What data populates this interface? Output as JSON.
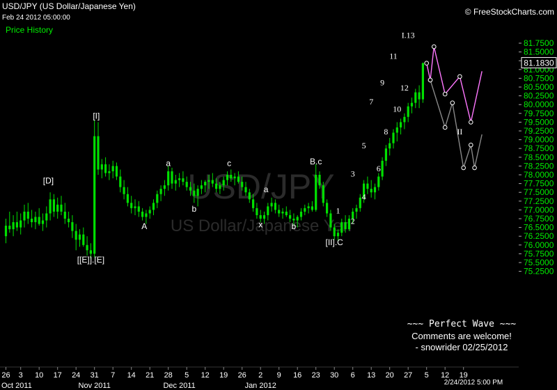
{
  "header": {
    "title": "USD/JPY (US Dollar/Japanese Yen)",
    "datetime": "Feb 24 2012 05:00:00",
    "price_history_label": "Price History",
    "copyright": "© FreeStockCharts.com"
  },
  "watermark": {
    "symbol": "USD/JPY",
    "name": "US Dollar/Japanese Yen"
  },
  "last_price": "81.1830",
  "last_bar_time": "2/24/2012 5:00 PM",
  "comment": {
    "line1": "~~~ Perfect Wave ~~~",
    "line2": "Comments are welcome!",
    "line3": "- snowrider  02/25/2012"
  },
  "colors": {
    "background": "#000000",
    "candle": "#00e000",
    "axis_label": "#00ee00",
    "projection_primary": "#ff77ff",
    "projection_alt": "#888888"
  },
  "chart_data": {
    "type": "line",
    "title": "USD/JPY (US Dollar/Japanese Yen)",
    "y_axis": {
      "position": "right",
      "ylim": [
        75.05,
        82.0
      ],
      "ticks": [
        "81.7500",
        "81.5000",
        "81.2500",
        "81.0000",
        "80.7500",
        "80.5000",
        "80.2500",
        "80.0000",
        "79.7500",
        "79.5000",
        "79.2500",
        "79.0000",
        "78.7500",
        "78.5000",
        "78.2500",
        "78.0000",
        "77.7500",
        "77.5000",
        "77.2500",
        "77.0000",
        "76.7500",
        "76.5000",
        "76.2500",
        "76.0000",
        "75.7500",
        "75.5000",
        "75.2500"
      ]
    },
    "x_axis": {
      "day_ticks": [
        {
          "i": 0,
          "label": "26"
        },
        {
          "i": 4,
          "label": "3"
        },
        {
          "i": 9,
          "label": "10"
        },
        {
          "i": 14,
          "label": "17"
        },
        {
          "i": 19,
          "label": "24"
        },
        {
          "i": 24,
          "label": "31"
        },
        {
          "i": 29,
          "label": "7"
        },
        {
          "i": 34,
          "label": "14"
        },
        {
          "i": 39,
          "label": "21"
        },
        {
          "i": 44,
          "label": "28"
        },
        {
          "i": 49,
          "label": "5"
        },
        {
          "i": 54,
          "label": "12"
        },
        {
          "i": 59,
          "label": "19"
        },
        {
          "i": 64,
          "label": "26"
        },
        {
          "i": 69,
          "label": "2"
        },
        {
          "i": 74,
          "label": "9"
        },
        {
          "i": 79,
          "label": "16"
        },
        {
          "i": 84,
          "label": "23"
        },
        {
          "i": 89,
          "label": "30"
        },
        {
          "i": 94,
          "label": "6"
        },
        {
          "i": 99,
          "label": "13"
        },
        {
          "i": 104,
          "label": "20"
        },
        {
          "i": 109,
          "label": "27"
        },
        {
          "i": 114,
          "label": "5"
        },
        {
          "i": 119,
          "label": "12"
        },
        {
          "i": 124,
          "label": "19"
        }
      ],
      "month_labels": [
        {
          "i": 0,
          "label": "Oct 2011"
        },
        {
          "i": 24,
          "label": "Nov 2011"
        },
        {
          "i": 47,
          "label": "Dec 2011"
        },
        {
          "i": 69,
          "label": "Jan 2012"
        }
      ]
    },
    "series": [
      {
        "kind": "candlestick",
        "ohlc": [
          [
            76.25,
            76.75,
            76.05,
            76.55
          ],
          [
            76.55,
            76.95,
            76.35,
            76.45
          ],
          [
            76.45,
            76.85,
            76.25,
            76.65
          ],
          [
            76.65,
            76.95,
            76.4,
            76.5
          ],
          [
            76.5,
            76.9,
            76.3,
            76.7
          ],
          [
            76.7,
            77.15,
            76.5,
            76.95
          ],
          [
            76.95,
            77.2,
            76.6,
            76.75
          ],
          [
            76.75,
            77.0,
            76.5,
            76.65
          ],
          [
            76.65,
            76.95,
            76.45,
            76.8
          ],
          [
            76.8,
            77.05,
            76.55,
            76.6
          ],
          [
            76.6,
            76.9,
            76.4,
            76.7
          ],
          [
            76.7,
            77.1,
            76.5,
            76.9
          ],
          [
            76.9,
            77.5,
            76.7,
            77.3
          ],
          [
            77.3,
            77.45,
            76.8,
            76.95
          ],
          [
            76.95,
            77.35,
            76.75,
            77.15
          ],
          [
            77.15,
            77.4,
            76.85,
            76.95
          ],
          [
            76.95,
            77.2,
            76.6,
            76.75
          ],
          [
            76.75,
            76.95,
            76.5,
            76.65
          ],
          [
            76.65,
            76.85,
            76.2,
            76.4
          ],
          [
            76.4,
            76.6,
            75.85,
            76.15
          ],
          [
            76.15,
            76.45,
            75.95,
            76.3
          ],
          [
            76.3,
            76.5,
            75.95,
            76.0
          ],
          [
            76.0,
            76.25,
            75.7,
            75.85
          ],
          [
            75.85,
            76.05,
            75.6,
            75.75
          ],
          [
            75.75,
            79.55,
            75.65,
            79.1
          ],
          [
            79.1,
            79.5,
            78.0,
            78.15
          ],
          [
            78.15,
            78.45,
            77.9,
            78.3
          ],
          [
            78.3,
            78.5,
            77.95,
            78.05
          ],
          [
            78.05,
            78.3,
            77.85,
            78.1
          ],
          [
            78.1,
            78.4,
            77.9,
            78.25
          ],
          [
            78.25,
            78.35,
            77.85,
            77.95
          ],
          [
            77.95,
            78.15,
            77.5,
            77.65
          ],
          [
            77.65,
            77.85,
            77.3,
            77.45
          ],
          [
            77.45,
            77.65,
            77.1,
            77.2
          ],
          [
            77.2,
            77.4,
            76.9,
            77.05
          ],
          [
            77.05,
            77.3,
            76.85,
            77.1
          ],
          [
            77.1,
            77.25,
            76.8,
            76.95
          ],
          [
            76.95,
            77.05,
            76.7,
            76.8
          ],
          [
            76.8,
            77.0,
            76.6,
            76.9
          ],
          [
            76.9,
            77.1,
            76.75,
            77.0
          ],
          [
            77.0,
            77.3,
            76.85,
            77.2
          ],
          [
            77.2,
            77.55,
            77.05,
            77.45
          ],
          [
            77.45,
            77.7,
            77.25,
            77.6
          ],
          [
            77.6,
            77.85,
            77.4,
            77.7
          ],
          [
            77.7,
            78.25,
            77.55,
            78.1
          ],
          [
            78.1,
            78.2,
            77.6,
            77.75
          ],
          [
            77.75,
            78.0,
            77.55,
            77.85
          ],
          [
            77.85,
            78.05,
            77.65,
            77.9
          ],
          [
            77.9,
            78.1,
            77.7,
            77.8
          ],
          [
            77.8,
            77.95,
            77.55,
            77.65
          ],
          [
            77.65,
            77.8,
            77.4,
            77.55
          ],
          [
            77.55,
            77.75,
            77.2,
            77.4
          ],
          [
            77.4,
            77.7,
            77.1,
            77.6
          ],
          [
            77.6,
            77.85,
            77.45,
            77.7
          ],
          [
            77.7,
            77.85,
            77.5,
            77.8
          ],
          [
            77.8,
            78.0,
            77.6,
            77.85
          ],
          [
            77.85,
            78.05,
            77.65,
            77.75
          ],
          [
            77.75,
            77.9,
            77.5,
            77.6
          ],
          [
            77.6,
            77.8,
            77.45,
            77.7
          ],
          [
            77.7,
            77.95,
            77.55,
            77.85
          ],
          [
            77.85,
            78.1,
            77.7,
            78.0
          ],
          [
            78.0,
            78.15,
            77.8,
            77.9
          ],
          [
            77.9,
            78.05,
            77.7,
            77.95
          ],
          [
            77.95,
            78.1,
            77.75,
            77.8
          ],
          [
            77.8,
            77.95,
            77.55,
            77.65
          ],
          [
            77.65,
            77.8,
            77.4,
            77.5
          ],
          [
            77.5,
            77.6,
            77.2,
            77.3
          ],
          [
            77.3,
            77.45,
            76.95,
            77.05
          ],
          [
            77.05,
            77.2,
            76.75,
            76.85
          ],
          [
            76.85,
            77.0,
            76.65,
            76.75
          ],
          [
            76.75,
            76.95,
            76.6,
            76.85
          ],
          [
            76.85,
            77.2,
            76.7,
            77.1
          ],
          [
            77.1,
            77.35,
            76.95,
            77.2
          ],
          [
            77.2,
            77.3,
            76.9,
            77.0
          ],
          [
            77.0,
            77.15,
            76.8,
            76.9
          ],
          [
            76.9,
            77.05,
            76.75,
            76.95
          ],
          [
            76.95,
            77.1,
            76.8,
            76.85
          ],
          [
            76.85,
            77.0,
            76.65,
            76.75
          ],
          [
            76.75,
            76.9,
            76.55,
            76.7
          ],
          [
            76.7,
            76.85,
            76.5,
            76.8
          ],
          [
            76.8,
            77.05,
            76.7,
            76.95
          ],
          [
            76.95,
            77.15,
            76.85,
            77.05
          ],
          [
            77.05,
            77.2,
            76.9,
            77.1
          ],
          [
            77.1,
            77.25,
            76.95,
            77.0
          ],
          [
            77.0,
            78.3,
            76.95,
            78.0
          ],
          [
            78.0,
            78.1,
            77.6,
            77.7
          ],
          [
            77.7,
            77.8,
            77.1,
            77.2
          ],
          [
            77.2,
            77.3,
            76.8,
            76.9
          ],
          [
            76.9,
            77.0,
            76.4,
            76.5
          ],
          [
            76.5,
            76.6,
            76.15,
            76.25
          ],
          [
            76.25,
            76.45,
            76.1,
            76.35
          ],
          [
            76.35,
            76.75,
            76.25,
            76.65
          ],
          [
            76.65,
            76.85,
            76.35,
            76.45
          ],
          [
            76.45,
            76.85,
            76.4,
            76.75
          ],
          [
            76.75,
            77.05,
            76.6,
            76.95
          ],
          [
            76.95,
            77.15,
            76.75,
            77.05
          ],
          [
            77.05,
            77.45,
            76.95,
            77.35
          ],
          [
            77.35,
            77.85,
            77.2,
            77.75
          ],
          [
            77.75,
            77.95,
            77.45,
            77.6
          ],
          [
            77.6,
            77.85,
            77.35,
            77.5
          ],
          [
            77.5,
            77.75,
            77.3,
            77.65
          ],
          [
            77.65,
            78.05,
            77.55,
            77.95
          ],
          [
            77.95,
            78.5,
            77.85,
            78.4
          ],
          [
            78.4,
            78.85,
            78.25,
            78.75
          ],
          [
            78.75,
            79.05,
            78.55,
            78.9
          ],
          [
            78.9,
            79.3,
            78.75,
            79.2
          ],
          [
            79.2,
            79.5,
            78.95,
            79.35
          ],
          [
            79.35,
            79.6,
            79.15,
            79.5
          ],
          [
            79.5,
            79.75,
            79.3,
            79.65
          ],
          [
            79.65,
            80.05,
            79.5,
            79.95
          ],
          [
            79.95,
            80.2,
            79.75,
            80.05
          ],
          [
            80.05,
            80.45,
            79.9,
            80.35
          ],
          [
            80.35,
            80.55,
            79.9,
            80.15
          ],
          [
            80.15,
            81.2,
            80.05,
            81.18
          ]
        ]
      },
      {
        "kind": "projection",
        "name": "primary",
        "points": [
          [
            114,
            81.18
          ],
          [
            115,
            80.7
          ],
          [
            116,
            81.65
          ],
          [
            119,
            80.3
          ],
          [
            123,
            80.8
          ],
          [
            126,
            79.5
          ],
          [
            129,
            80.95
          ]
        ]
      },
      {
        "kind": "projection",
        "name": "alternate",
        "points": [
          [
            115,
            80.7
          ],
          [
            119,
            79.35
          ],
          [
            121,
            80.05
          ],
          [
            124,
            78.2
          ],
          [
            126,
            78.85
          ],
          [
            127,
            78.2
          ],
          [
            129,
            79.15
          ]
        ]
      }
    ],
    "annotations": [
      {
        "text": "[D]",
        "i": 11.5,
        "y": 77.75,
        "font": "sans"
      },
      {
        "text": "[I]",
        "i": 24.5,
        "y": 79.6,
        "font": "sans"
      },
      {
        "text": "[[E]].[E]",
        "i": 23,
        "y": 75.5,
        "font": "sans"
      },
      {
        "text": "A",
        "i": 37.5,
        "y": 76.45,
        "font": "sans"
      },
      {
        "text": "a",
        "i": 44,
        "y": 78.25,
        "font": "sans"
      },
      {
        "text": "b",
        "i": 51,
        "y": 76.95,
        "font": "sans"
      },
      {
        "text": "c",
        "i": 60.5,
        "y": 78.25,
        "font": "sans"
      },
      {
        "text": "a",
        "i": 70.5,
        "y": 77.5,
        "font": "sans"
      },
      {
        "text": "x",
        "i": 69,
        "y": 76.5,
        "font": "sans"
      },
      {
        "text": "b",
        "i": 78,
        "y": 76.45,
        "font": "sans"
      },
      {
        "text": "B.c",
        "i": 84,
        "y": 78.3,
        "font": "sans"
      },
      {
        "text": "[II].C",
        "i": 89,
        "y": 76.0,
        "font": "sans"
      },
      {
        "text": "1",
        "i": 90,
        "y": 76.9,
        "font": "serif"
      },
      {
        "text": "2",
        "i": 94,
        "y": 76.6,
        "font": "serif"
      },
      {
        "text": "3",
        "i": 94,
        "y": 77.95,
        "font": "serif"
      },
      {
        "text": "4",
        "i": 97,
        "y": 77.3,
        "font": "serif"
      },
      {
        "text": "5",
        "i": 97,
        "y": 78.75,
        "font": "serif"
      },
      {
        "text": "6",
        "i": 101,
        "y": 78.1,
        "font": "serif"
      },
      {
        "text": "7",
        "i": 99,
        "y": 80.0,
        "font": "serif"
      },
      {
        "text": "8",
        "i": 103,
        "y": 79.15,
        "font": "serif"
      },
      {
        "text": "9",
        "i": 102,
        "y": 80.55,
        "font": "serif"
      },
      {
        "text": "10",
        "i": 106,
        "y": 79.8,
        "font": "serif"
      },
      {
        "text": "11",
        "i": 105,
        "y": 81.3,
        "font": "serif"
      },
      {
        "text": "12",
        "i": 108,
        "y": 80.4,
        "font": "serif"
      },
      {
        "text": "I.13",
        "i": 109,
        "y": 81.9,
        "font": "serif"
      },
      {
        "text": "II",
        "i": 123,
        "y": 79.15,
        "font": "serif"
      }
    ]
  }
}
